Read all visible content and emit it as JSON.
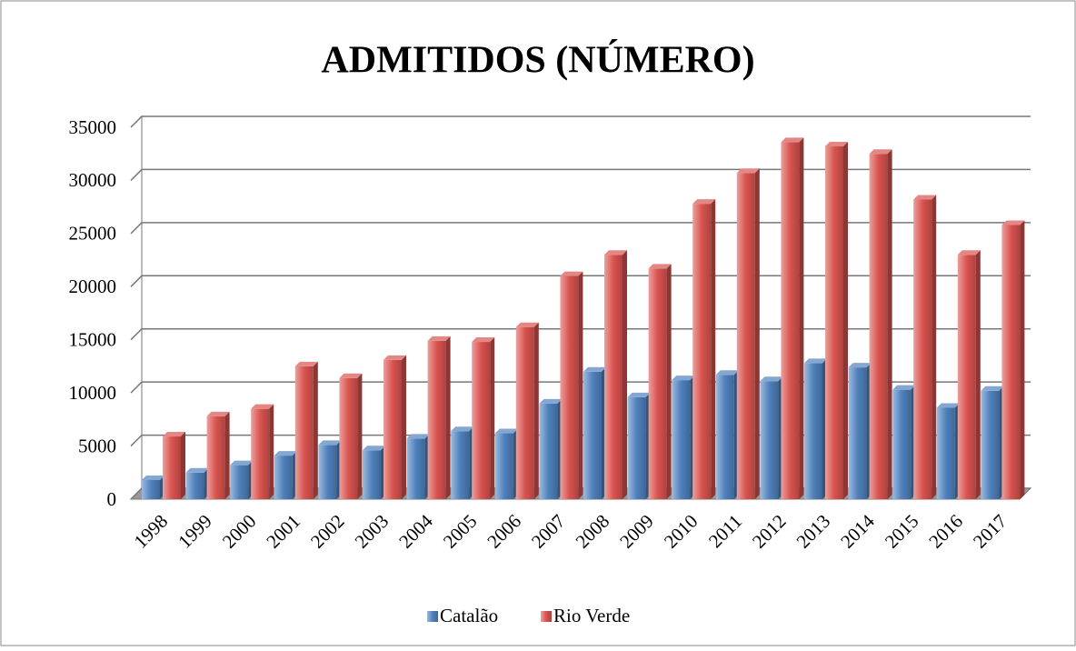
{
  "chart_data": {
    "type": "bar",
    "title": "ADMITIDOS (NÚMERO)",
    "categories": [
      "1998",
      "1999",
      "2000",
      "2001",
      "2002",
      "2003",
      "2004",
      "2005",
      "2006",
      "2007",
      "2008",
      "2009",
      "2010",
      "2011",
      "2012",
      "2013",
      "2014",
      "2015",
      "2016",
      "2017"
    ],
    "series": [
      {
        "name": "Catalão",
        "color": "#4f81bd",
        "values": [
          1800,
          2500,
          3200,
          4100,
          5100,
          4600,
          5700,
          6400,
          6200,
          9000,
          12000,
          9600,
          11200,
          11700,
          11100,
          12800,
          12400,
          10300,
          8600,
          10200
        ]
      },
      {
        "name": "Rio Verde",
        "color": "#d9534f",
        "values": [
          5900,
          7800,
          8500,
          12500,
          11400,
          13100,
          14900,
          14800,
          16200,
          21000,
          23000,
          21700,
          27800,
          30700,
          33600,
          33200,
          32500,
          28200,
          23000,
          25800
        ]
      }
    ],
    "ylim": [
      0,
      35000
    ],
    "yticks": [
      0,
      5000,
      10000,
      15000,
      20000,
      25000,
      30000,
      35000
    ],
    "grid": true,
    "legend": "bottom"
  }
}
